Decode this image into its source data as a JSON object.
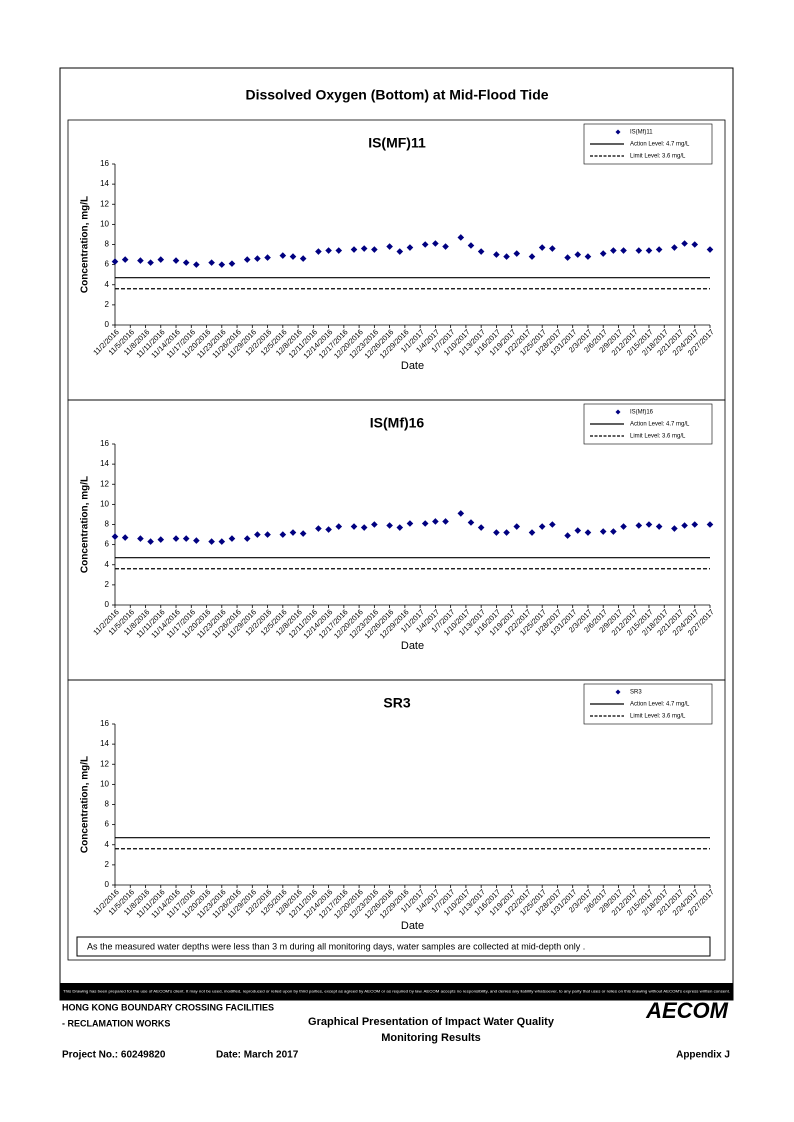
{
  "page": {
    "title": "Dissolved Oxygen (Bottom) at Mid-Flood Tide",
    "note": "As the measured water depths were less than 3 m during all monitoring days, water samples are collected  at mid-depth only .",
    "disclaimer": "This Drawing has been prepared for the use of AECOM's client. It may not be used, modified, reproduced or relied upon by third parties, except as agreed by AECOM or as required by law. AECOM accepts no responsibility, and denies any liability whatsoever, to any party that uses or relies on this drawing without AECOM's express written consent.",
    "footer": {
      "company_1": "HONG KONG BOUNDARY CROSSING FACILITIES",
      "company_2": "- RECLAMATION WORKS",
      "report_1": "Graphical Presentation of Impact Water Quality",
      "report_2": "Monitoring Results",
      "logo": "AECOM",
      "project": "Project No.: 60249820",
      "date": "Date: March 2017",
      "appendix": "Appendix J"
    }
  },
  "chart_data": [
    {
      "type": "scatter",
      "title": "IS(MF)11",
      "x_label": "Date",
      "y_label": "Concentration, mg/L",
      "legend": "upper right",
      "x": [
        "2016-11-02",
        "2016-11-04",
        "2016-11-07",
        "2016-11-09",
        "2016-11-11",
        "2016-11-14",
        "2016-11-16",
        "2016-11-18",
        "2016-11-21",
        "2016-11-23",
        "2016-11-25",
        "2016-11-28",
        "2016-11-30",
        "2016-12-02",
        "2016-12-05",
        "2016-12-07",
        "2016-12-09",
        "2016-12-12",
        "2016-12-14",
        "2016-12-16",
        "2016-12-19",
        "2016-12-21",
        "2016-12-23",
        "2016-12-26",
        "2016-12-28",
        "2016-12-30",
        "2017-01-02",
        "2017-01-04",
        "2017-01-06",
        "2017-01-09",
        "2017-01-11",
        "2017-01-13",
        "2017-01-16",
        "2017-01-18",
        "2017-01-20",
        "2017-01-23",
        "2017-01-25",
        "2017-01-27",
        "2017-01-30",
        "2017-02-01",
        "2017-02-03",
        "2017-02-06",
        "2017-02-08",
        "2017-02-10",
        "2017-02-13",
        "2017-02-15",
        "2017-02-17",
        "2017-02-20",
        "2017-02-22",
        "2017-02-24",
        "2017-02-27"
      ],
      "series": [
        {
          "name": "IS(Mf)11",
          "color": "#000080",
          "values": [
            6.3,
            6.5,
            6.4,
            6.2,
            6.5,
            6.4,
            6.2,
            6.0,
            6.2,
            6.0,
            6.1,
            6.5,
            6.6,
            6.7,
            6.9,
            6.8,
            6.6,
            7.3,
            7.4,
            7.4,
            7.5,
            7.6,
            7.5,
            7.8,
            7.3,
            7.7,
            8.0,
            8.1,
            7.8,
            8.7,
            7.9,
            7.3,
            7.0,
            6.8,
            7.1,
            6.8,
            7.7,
            7.6,
            6.7,
            7.0,
            6.8,
            7.1,
            7.4,
            7.4,
            7.4,
            7.4,
            7.5,
            7.7,
            8.1,
            8.0,
            7.5
          ]
        }
      ],
      "lines": [
        {
          "name": "Action Level: 4.7 mg/L",
          "value": 4.7,
          "dash": false,
          "color": "#000000"
        },
        {
          "name": "Limit Level: 3.6 mg/L",
          "value": 3.6,
          "dash": true,
          "color": "#000000"
        }
      ],
      "xlim": [
        "2016-11-02",
        "2017-02-27"
      ],
      "xticks": [
        {
          "value": "2016-11-02",
          "label": "11/2/2016"
        },
        {
          "value": "2016-11-05",
          "label": "11/5/2016"
        },
        {
          "value": "2016-11-08",
          "label": "11/8/2016"
        },
        {
          "value": "2016-11-11",
          "label": "11/11/2016"
        },
        {
          "value": "2016-11-14",
          "label": "11/14/2016"
        },
        {
          "value": "2016-11-17",
          "label": "11/17/2016"
        },
        {
          "value": "2016-11-20",
          "label": "11/20/2016"
        },
        {
          "value": "2016-11-23",
          "label": "11/23/2016"
        },
        {
          "value": "2016-11-26",
          "label": "11/26/2016"
        },
        {
          "value": "2016-11-29",
          "label": "11/29/2016"
        },
        {
          "value": "2016-12-02",
          "label": "12/2/2016"
        },
        {
          "value": "2016-12-05",
          "label": "12/5/2016"
        },
        {
          "value": "2016-12-08",
          "label": "12/8/2016"
        },
        {
          "value": "2016-12-11",
          "label": "12/11/2016"
        },
        {
          "value": "2016-12-14",
          "label": "12/14/2016"
        },
        {
          "value": "2016-12-17",
          "label": "12/17/2016"
        },
        {
          "value": "2016-12-20",
          "label": "12/20/2016"
        },
        {
          "value": "2016-12-23",
          "label": "12/23/2016"
        },
        {
          "value": "2016-12-26",
          "label": "12/26/2016"
        },
        {
          "value": "2016-12-29",
          "label": "12/29/2016"
        },
        {
          "value": "2017-01-01",
          "label": "1/1/2017"
        },
        {
          "value": "2017-01-04",
          "label": "1/4/2017"
        },
        {
          "value": "2017-01-07",
          "label": "1/7/2017"
        },
        {
          "value": "2017-01-10",
          "label": "1/10/2017"
        },
        {
          "value": "2017-01-13",
          "label": "1/13/2017"
        },
        {
          "value": "2017-01-16",
          "label": "1/16/2017"
        },
        {
          "value": "2017-01-19",
          "label": "1/19/2017"
        },
        {
          "value": "2017-01-22",
          "label": "1/22/2017"
        },
        {
          "value": "2017-01-25",
          "label": "1/25/2017"
        },
        {
          "value": "2017-01-28",
          "label": "1/28/2017"
        },
        {
          "value": "2017-01-31",
          "label": "1/31/2017"
        },
        {
          "value": "2017-02-03",
          "label": "2/3/2017"
        },
        {
          "value": "2017-02-06",
          "label": "2/6/2017"
        },
        {
          "value": "2017-02-09",
          "label": "2/9/2017"
        },
        {
          "value": "2017-02-12",
          "label": "2/12/2017"
        },
        {
          "value": "2017-02-15",
          "label": "2/15/2017"
        },
        {
          "value": "2017-02-18",
          "label": "2/18/2017"
        },
        {
          "value": "2017-02-21",
          "label": "2/21/2017"
        },
        {
          "value": "2017-02-24",
          "label": "2/24/2017"
        },
        {
          "value": "2017-02-27",
          "label": "2/27/2017"
        }
      ],
      "ylim": [
        0,
        16
      ],
      "yticks": [
        0,
        2,
        4,
        6,
        8,
        10,
        12,
        14,
        16
      ]
    },
    {
      "type": "scatter",
      "title": "IS(Mf)16",
      "x_label": "Date",
      "y_label": "Concentration, mg/L",
      "legend": "upper right",
      "x": [
        "2016-11-02",
        "2016-11-04",
        "2016-11-07",
        "2016-11-09",
        "2016-11-11",
        "2016-11-14",
        "2016-11-16",
        "2016-11-18",
        "2016-11-21",
        "2016-11-23",
        "2016-11-25",
        "2016-11-28",
        "2016-11-30",
        "2016-12-02",
        "2016-12-05",
        "2016-12-07",
        "2016-12-09",
        "2016-12-12",
        "2016-12-14",
        "2016-12-16",
        "2016-12-19",
        "2016-12-21",
        "2016-12-23",
        "2016-12-26",
        "2016-12-28",
        "2016-12-30",
        "2017-01-02",
        "2017-01-04",
        "2017-01-06",
        "2017-01-09",
        "2017-01-11",
        "2017-01-13",
        "2017-01-16",
        "2017-01-18",
        "2017-01-20",
        "2017-01-23",
        "2017-01-25",
        "2017-01-27",
        "2017-01-30",
        "2017-02-01",
        "2017-02-03",
        "2017-02-06",
        "2017-02-08",
        "2017-02-10",
        "2017-02-13",
        "2017-02-15",
        "2017-02-17",
        "2017-02-20",
        "2017-02-22",
        "2017-02-24",
        "2017-02-27"
      ],
      "series": [
        {
          "name": "IS(Mf)16",
          "color": "#000080",
          "values": [
            6.8,
            6.7,
            6.6,
            6.3,
            6.5,
            6.6,
            6.6,
            6.4,
            6.3,
            6.3,
            6.6,
            6.6,
            7.0,
            7.0,
            7.0,
            7.2,
            7.1,
            7.6,
            7.5,
            7.8,
            7.8,
            7.7,
            8.0,
            7.9,
            7.7,
            8.1,
            8.1,
            8.3,
            8.3,
            9.1,
            8.2,
            7.7,
            7.2,
            7.2,
            7.8,
            7.2,
            7.8,
            8.0,
            6.9,
            7.4,
            7.2,
            7.3,
            7.3,
            7.8,
            7.9,
            8.0,
            7.8,
            7.6,
            7.9,
            8.0,
            8.0
          ]
        }
      ],
      "lines": [
        {
          "name": "Action Level: 4.7 mg/L",
          "value": 4.7,
          "dash": false,
          "color": "#000000"
        },
        {
          "name": "Limit Level: 3.6 mg/L",
          "value": 3.6,
          "dash": true,
          "color": "#000000"
        }
      ],
      "xlim": [
        "2016-11-02",
        "2017-02-27"
      ],
      "xticks": [
        {
          "value": "2016-11-02",
          "label": "11/2/2016"
        },
        {
          "value": "2016-11-05",
          "label": "11/5/2016"
        },
        {
          "value": "2016-11-08",
          "label": "11/8/2016"
        },
        {
          "value": "2016-11-11",
          "label": "11/11/2016"
        },
        {
          "value": "2016-11-14",
          "label": "11/14/2016"
        },
        {
          "value": "2016-11-17",
          "label": "11/17/2016"
        },
        {
          "value": "2016-11-20",
          "label": "11/20/2016"
        },
        {
          "value": "2016-11-23",
          "label": "11/23/2016"
        },
        {
          "value": "2016-11-26",
          "label": "11/26/2016"
        },
        {
          "value": "2016-11-29",
          "label": "11/29/2016"
        },
        {
          "value": "2016-12-02",
          "label": "12/2/2016"
        },
        {
          "value": "2016-12-05",
          "label": "12/5/2016"
        },
        {
          "value": "2016-12-08",
          "label": "12/8/2016"
        },
        {
          "value": "2016-12-11",
          "label": "12/11/2016"
        },
        {
          "value": "2016-12-14",
          "label": "12/14/2016"
        },
        {
          "value": "2016-12-17",
          "label": "12/17/2016"
        },
        {
          "value": "2016-12-20",
          "label": "12/20/2016"
        },
        {
          "value": "2016-12-23",
          "label": "12/23/2016"
        },
        {
          "value": "2016-12-26",
          "label": "12/26/2016"
        },
        {
          "value": "2016-12-29",
          "label": "12/29/2016"
        },
        {
          "value": "2017-01-01",
          "label": "1/1/2017"
        },
        {
          "value": "2017-01-04",
          "label": "1/4/2017"
        },
        {
          "value": "2017-01-07",
          "label": "1/7/2017"
        },
        {
          "value": "2017-01-10",
          "label": "1/10/2017"
        },
        {
          "value": "2017-01-13",
          "label": "1/13/2017"
        },
        {
          "value": "2017-01-16",
          "label": "1/16/2017"
        },
        {
          "value": "2017-01-19",
          "label": "1/19/2017"
        },
        {
          "value": "2017-01-22",
          "label": "1/22/2017"
        },
        {
          "value": "2017-01-25",
          "label": "1/25/2017"
        },
        {
          "value": "2017-01-28",
          "label": "1/28/2017"
        },
        {
          "value": "2017-01-31",
          "label": "1/31/2017"
        },
        {
          "value": "2017-02-03",
          "label": "2/3/2017"
        },
        {
          "value": "2017-02-06",
          "label": "2/6/2017"
        },
        {
          "value": "2017-02-09",
          "label": "2/9/2017"
        },
        {
          "value": "2017-02-12",
          "label": "2/12/2017"
        },
        {
          "value": "2017-02-15",
          "label": "2/15/2017"
        },
        {
          "value": "2017-02-18",
          "label": "2/18/2017"
        },
        {
          "value": "2017-02-21",
          "label": "2/21/2017"
        },
        {
          "value": "2017-02-24",
          "label": "2/24/2017"
        },
        {
          "value": "2017-02-27",
          "label": "2/27/2017"
        }
      ],
      "ylim": [
        0,
        16
      ],
      "yticks": [
        0,
        2,
        4,
        6,
        8,
        10,
        12,
        14,
        16
      ]
    },
    {
      "type": "scatter",
      "title": "SR3",
      "x_label": "Date",
      "y_label": "Concentration, mg/L",
      "legend": "upper right",
      "x": [],
      "series": [
        {
          "name": "SR3",
          "color": "#000080",
          "values": []
        }
      ],
      "lines": [
        {
          "name": "Action Level: 4.7 mg/L",
          "value": 4.7,
          "dash": false,
          "color": "#000000"
        },
        {
          "name": "Limit Level: 3.6 mg/L",
          "value": 3.6,
          "dash": true,
          "color": "#000000"
        }
      ],
      "xlim": [
        "2016-11-02",
        "2017-02-27"
      ],
      "xticks": [
        {
          "value": "2016-11-02",
          "label": "11/2/2016"
        },
        {
          "value": "2016-11-05",
          "label": "11/5/2016"
        },
        {
          "value": "2016-11-08",
          "label": "11/8/2016"
        },
        {
          "value": "2016-11-11",
          "label": "11/11/2016"
        },
        {
          "value": "2016-11-14",
          "label": "11/14/2016"
        },
        {
          "value": "2016-11-17",
          "label": "11/17/2016"
        },
        {
          "value": "2016-11-20",
          "label": "11/20/2016"
        },
        {
          "value": "2016-11-23",
          "label": "11/23/2016"
        },
        {
          "value": "2016-11-26",
          "label": "11/26/2016"
        },
        {
          "value": "2016-11-29",
          "label": "11/29/2016"
        },
        {
          "value": "2016-12-02",
          "label": "12/2/2016"
        },
        {
          "value": "2016-12-05",
          "label": "12/5/2016"
        },
        {
          "value": "2016-12-08",
          "label": "12/8/2016"
        },
        {
          "value": "2016-12-11",
          "label": "12/11/2016"
        },
        {
          "value": "2016-12-14",
          "label": "12/14/2016"
        },
        {
          "value": "2016-12-17",
          "label": "12/17/2016"
        },
        {
          "value": "2016-12-20",
          "label": "12/20/2016"
        },
        {
          "value": "2016-12-23",
          "label": "12/23/2016"
        },
        {
          "value": "2016-12-26",
          "label": "12/26/2016"
        },
        {
          "value": "2016-12-29",
          "label": "12/29/2016"
        },
        {
          "value": "2017-01-01",
          "label": "1/1/2017"
        },
        {
          "value": "2017-01-04",
          "label": "1/4/2017"
        },
        {
          "value": "2017-01-07",
          "label": "1/7/2017"
        },
        {
          "value": "2017-01-10",
          "label": "1/10/2017"
        },
        {
          "value": "2017-01-13",
          "label": "1/13/2017"
        },
        {
          "value": "2017-01-16",
          "label": "1/16/2017"
        },
        {
          "value": "2017-01-19",
          "label": "1/19/2017"
        },
        {
          "value": "2017-01-22",
          "label": "1/22/2017"
        },
        {
          "value": "2017-01-25",
          "label": "1/25/2017"
        },
        {
          "value": "2017-01-28",
          "label": "1/28/2017"
        },
        {
          "value": "2017-01-31",
          "label": "1/31/2017"
        },
        {
          "value": "2017-02-03",
          "label": "2/3/2017"
        },
        {
          "value": "2017-02-06",
          "label": "2/6/2017"
        },
        {
          "value": "2017-02-09",
          "label": "2/9/2017"
        },
        {
          "value": "2017-02-12",
          "label": "2/12/2017"
        },
        {
          "value": "2017-02-15",
          "label": "2/15/2017"
        },
        {
          "value": "2017-02-18",
          "label": "2/18/2017"
        },
        {
          "value": "2017-02-21",
          "label": "2/21/2017"
        },
        {
          "value": "2017-02-24",
          "label": "2/24/2017"
        },
        {
          "value": "2017-02-27",
          "label": "2/27/2017"
        }
      ],
      "ylim": [
        0,
        16
      ],
      "yticks": [
        0,
        2,
        4,
        6,
        8,
        10,
        12,
        14,
        16
      ]
    }
  ]
}
